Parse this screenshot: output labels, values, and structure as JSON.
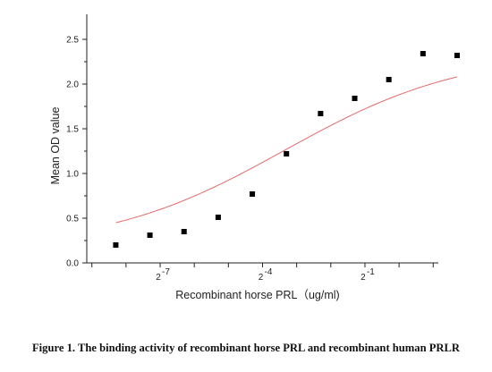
{
  "chart_data": {
    "type": "scatter",
    "title": "",
    "xlabel": "Recombinant horse PRL（ug/ml)",
    "ylabel": "Mean OD value",
    "x_scale": "log2",
    "x_ticks": [
      {
        "exponent": -7,
        "base": "2",
        "power": "-7"
      },
      {
        "exponent": -4,
        "base": "2",
        "power": "-4"
      },
      {
        "exponent": -1,
        "base": "2",
        "power": "-1"
      }
    ],
    "xlim": [
      -9.15,
      1.15
    ],
    "ylim": [
      0,
      2.7
    ],
    "y_ticks": [
      {
        "value": 0.0,
        "label": "0.0"
      },
      {
        "value": 0.5,
        "label": "0.5"
      },
      {
        "value": 1.0,
        "label": "1.0"
      },
      {
        "value": 1.5,
        "label": "1.5"
      },
      {
        "value": 2.0,
        "label": "2.0"
      },
      {
        "value": 2.5,
        "label": "2.5"
      }
    ],
    "series": [
      {
        "x_exponents": [
          -8.3,
          -7.3,
          -6.3,
          -5.3,
          -4.3,
          -3.3,
          -2.3,
          -1.3,
          -0.3,
          0.7,
          1.7
        ],
        "y": [
          0.2,
          0.31,
          0.35,
          0.51,
          0.77,
          1.22,
          1.67,
          1.84,
          2.05,
          2.34,
          2.32
        ],
        "marker": "square",
        "color": "#000000"
      }
    ],
    "fit": {
      "model": "4PL",
      "bottom": 0.16,
      "top": 2.36,
      "ec50_exponent": -3.35,
      "hill_log2": 0.55,
      "color": "#e46a6a"
    },
    "grid": false,
    "legend": "none"
  },
  "caption": "Figure 1. The binding activity of recombinant horse PRL and recombinant human PRLR"
}
